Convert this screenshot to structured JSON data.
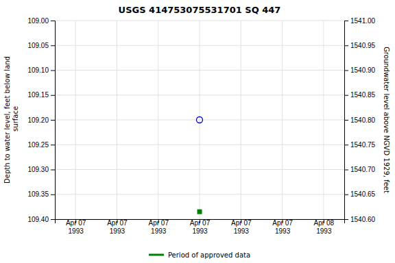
{
  "chart_data": {
    "type": "scatter",
    "title": "USGS 414753075531701 SQ   447",
    "ylabel": "Depth to water level, feet below land\n surface",
    "y2label": "Groundwater level above NGVD 1929, feet",
    "categories": [
      "Apr 07\n1993",
      "Apr 07\n1993",
      "Apr 07\n1993",
      "Apr 07\n1993",
      "Apr 07\n1993",
      "Apr 07\n1993",
      "Apr 08\n1993"
    ],
    "series": [
      {
        "color": "#0000cc",
        "marker": "open-circle",
        "values": [
          null,
          null,
          null,
          109.2,
          null,
          null,
          null
        ]
      },
      {
        "name": "Period of approved data",
        "color": "#008000",
        "marker": "square",
        "values": [
          null,
          null,
          null,
          109.385,
          null,
          null,
          null
        ]
      }
    ],
    "ylim": [
      109.4,
      109.0
    ],
    "yticks": [
      {
        "value": 109.0,
        "label": "109.00"
      },
      {
        "value": 109.05,
        "label": "109.05"
      },
      {
        "value": 109.1,
        "label": "109.10"
      },
      {
        "value": 109.15,
        "label": "109.15"
      },
      {
        "value": 109.2,
        "label": "109.20"
      },
      {
        "value": 109.25,
        "label": "109.25"
      },
      {
        "value": 109.3,
        "label": "109.30"
      },
      {
        "value": 109.35,
        "label": "109.35"
      },
      {
        "value": 109.4,
        "label": "109.40"
      }
    ],
    "y2lim": [
      1540.6,
      1541.0
    ],
    "y2ticks": [
      {
        "value": 1541.0,
        "label": "1541.00"
      },
      {
        "value": 1540.95,
        "label": "1540.95"
      },
      {
        "value": 1540.9,
        "label": "1540.90"
      },
      {
        "value": 1540.85,
        "label": "1540.85"
      },
      {
        "value": 1540.8,
        "label": "1540.80"
      },
      {
        "value": 1540.75,
        "label": "1540.75"
      },
      {
        "value": 1540.7,
        "label": "1540.70"
      },
      {
        "value": 1540.65,
        "label": "1540.65"
      },
      {
        "value": 1540.6,
        "label": "1540.60"
      }
    ],
    "grid": true,
    "legend": "bottom"
  }
}
